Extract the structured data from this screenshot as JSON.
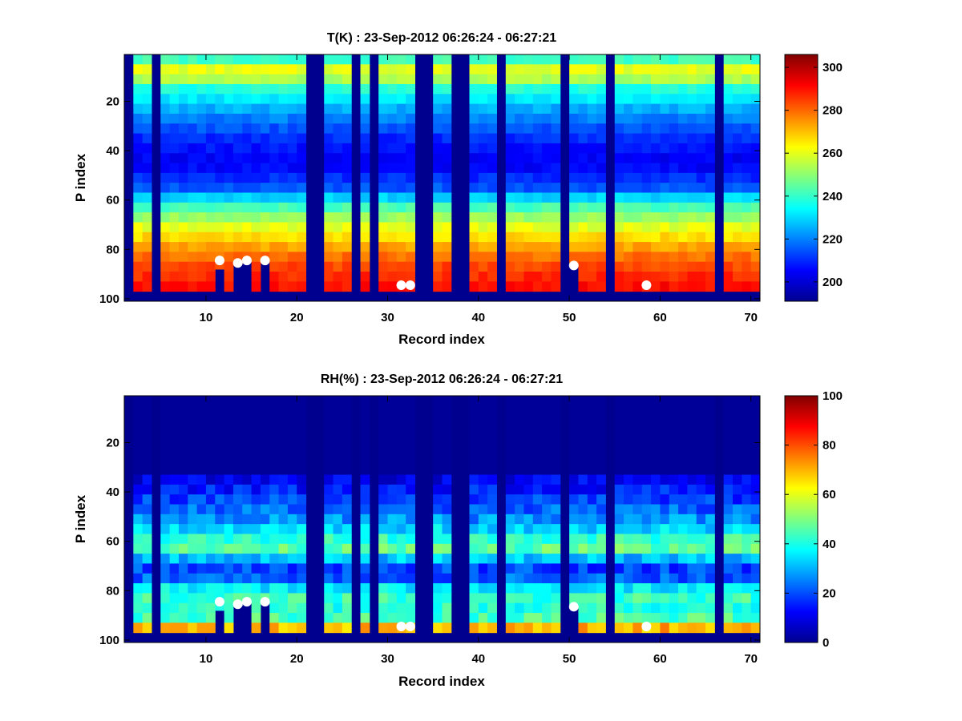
{
  "chart_data": [
    {
      "type": "heatmap",
      "title": "T(K) : 23-Sep-2012 06:26:24 - 06:27:21",
      "xlabel": "Record index",
      "ylabel": "P index",
      "xlim": [
        1,
        71
      ],
      "ylim": [
        1,
        101
      ],
      "y_reversed": true,
      "xticks": [
        10,
        20,
        30,
        40,
        50,
        60,
        70
      ],
      "yticks": [
        20,
        40,
        60,
        80,
        100
      ],
      "colormap": "jet",
      "colorbar": {
        "range": [
          191,
          306
        ],
        "ticks": [
          200,
          220,
          240,
          260,
          280,
          300
        ]
      },
      "gap_records": [
        1,
        4,
        21,
        22,
        26,
        28,
        33,
        34,
        37,
        38,
        42,
        49,
        54,
        66
      ],
      "profile_bottom_index": 97,
      "truncated_records": [
        {
          "record": 11,
          "bottom_index": 88
        },
        {
          "record": 13,
          "bottom_index": 86
        },
        {
          "record": 14,
          "bottom_index": 85
        },
        {
          "record": 16,
          "bottom_index": 85
        },
        {
          "record": 50,
          "bottom_index": 87
        }
      ],
      "profile": {
        "p_index": [
          1,
          8,
          15,
          25,
          35,
          45,
          55,
          62,
          70,
          78,
          85,
          92,
          97
        ],
        "values": [
          232,
          265,
          238,
          222,
          210,
          203,
          215,
          240,
          258,
          272,
          282,
          288,
          292
        ]
      },
      "markers": [
        {
          "record": 11,
          "p_index": 84.5
        },
        {
          "record": 13,
          "p_index": 85.5
        },
        {
          "record": 14,
          "p_index": 84.5
        },
        {
          "record": 16,
          "p_index": 84.5
        },
        {
          "record": 31,
          "p_index": 94.5
        },
        {
          "record": 32,
          "p_index": 94.5
        },
        {
          "record": 50,
          "p_index": 86.5
        },
        {
          "record": 58,
          "p_index": 94.5
        }
      ]
    },
    {
      "type": "heatmap",
      "title": "RH(%) : 23-Sep-2012 06:26:24 - 06:27:21",
      "xlabel": "Record index",
      "ylabel": "P index",
      "xlim": [
        1,
        71
      ],
      "ylim": [
        1,
        101
      ],
      "y_reversed": true,
      "xticks": [
        10,
        20,
        30,
        40,
        50,
        60,
        70
      ],
      "yticks": [
        20,
        40,
        60,
        80,
        100
      ],
      "colormap": "jet",
      "colorbar": {
        "range": [
          0,
          100
        ],
        "ticks": [
          0,
          20,
          40,
          60,
          80,
          100
        ]
      },
      "gap_records": [
        1,
        4,
        21,
        22,
        26,
        28,
        33,
        34,
        37,
        38,
        42,
        49,
        54,
        66
      ],
      "profile_bottom_index": 97,
      "truncated_records": [
        {
          "record": 11,
          "bottom_index": 88
        },
        {
          "record": 13,
          "bottom_index": 86
        },
        {
          "record": 14,
          "bottom_index": 85
        },
        {
          "record": 16,
          "bottom_index": 85
        },
        {
          "record": 50,
          "bottom_index": 87
        }
      ],
      "profile": {
        "p_index": [
          1,
          30,
          36,
          45,
          52,
          58,
          62,
          65,
          70,
          75,
          80,
          84,
          88,
          92,
          95,
          97
        ],
        "values": [
          1,
          2,
          12,
          20,
          28,
          40,
          50,
          40,
          18,
          22,
          40,
          44,
          40,
          46,
          70,
          80
        ]
      },
      "markers": [
        {
          "record": 11,
          "p_index": 84.5
        },
        {
          "record": 13,
          "p_index": 85.5
        },
        {
          "record": 14,
          "p_index": 84.5
        },
        {
          "record": 16,
          "p_index": 84.5
        },
        {
          "record": 31,
          "p_index": 94.5
        },
        {
          "record": 32,
          "p_index": 94.5
        },
        {
          "record": 50,
          "p_index": 86.5
        },
        {
          "record": 58,
          "p_index": 94.5
        }
      ]
    }
  ]
}
